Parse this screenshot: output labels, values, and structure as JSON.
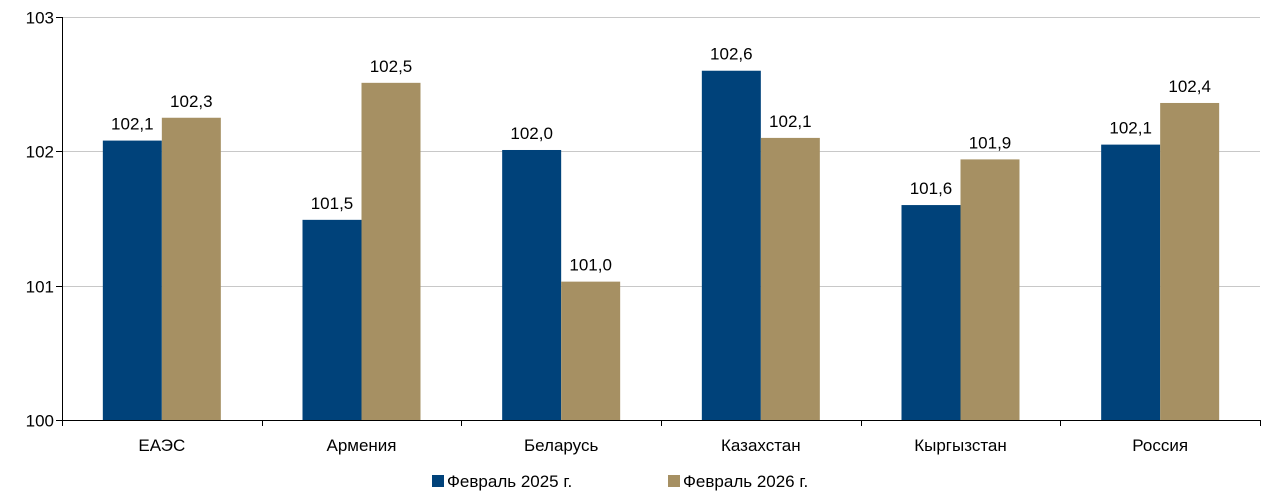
{
  "chart_data": {
    "type": "bar",
    "categories": [
      "ЕАЭС",
      "Армения",
      "Беларусь",
      "Казахстан",
      "Кыргызстан",
      "Россия"
    ],
    "series": [
      {
        "name": "Февраль 2025 г.",
        "color": "#00427a",
        "values": [
          102.08,
          101.49,
          102.01,
          102.6,
          101.6,
          102.05
        ],
        "labels": [
          "102,1",
          "101,5",
          "102,0",
          "102,6",
          "101,6",
          "102,1"
        ]
      },
      {
        "name": "Февраль 2026 г.",
        "color": "#a69063",
        "values": [
          102.25,
          102.51,
          101.03,
          102.1,
          101.94,
          102.36
        ],
        "labels": [
          "102,3",
          "102,5",
          "101,0",
          "102,1",
          "101,9",
          "102,4"
        ]
      }
    ],
    "y_ticks": [
      100,
      101,
      102,
      103
    ],
    "y_tick_labels": [
      "100",
      "101",
      "102",
      "103"
    ],
    "ylim": [
      100,
      103
    ],
    "grid": true,
    "legend_position": "bottom",
    "title": "",
    "xlabel": "",
    "ylabel": ""
  }
}
